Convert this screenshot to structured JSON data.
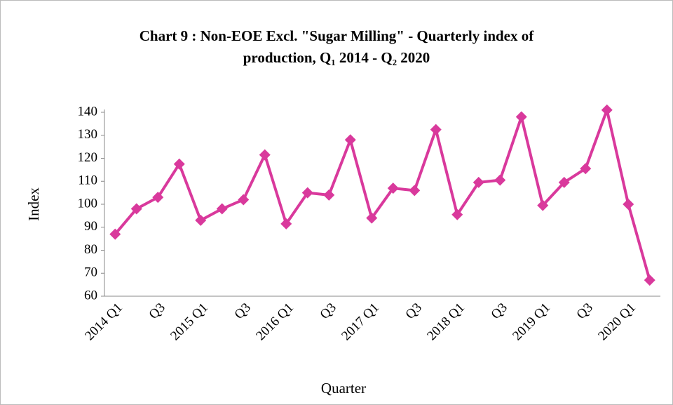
{
  "chart_data": {
    "type": "line",
    "title_lines": [
      "Chart 9 : Non-EOE Excl. \"Sugar Milling\" - Quarterly index of",
      "production, Q₁ 2014 - Q₂ 2020"
    ],
    "x_label": "Quarter",
    "y_label": "Index",
    "categories": [
      "2014 Q1",
      null,
      "Q3",
      null,
      "2015 Q1",
      null,
      "Q3",
      null,
      "2016 Q1",
      null,
      "Q3",
      null,
      "2017 Q1",
      null,
      "Q3",
      null,
      "2018 Q1",
      null,
      "Q3",
      null,
      "2019 Q1",
      null,
      "Q3",
      null,
      "2020 Q1",
      null
    ],
    "series": [
      {
        "name": "Index",
        "color": "#d9399c",
        "values": [
          87,
          98,
          103,
          117.5,
          93,
          98,
          102,
          121.5,
          91.5,
          105,
          104,
          128,
          94,
          107,
          106,
          132.5,
          95.5,
          109.5,
          110.5,
          138,
          99.5,
          109.5,
          115.5,
          141,
          100,
          67
        ]
      }
    ],
    "ylim": [
      60,
      140
    ],
    "yticks": [
      60,
      70,
      80,
      90,
      100,
      110,
      120,
      130,
      140
    ],
    "grid": false
  }
}
